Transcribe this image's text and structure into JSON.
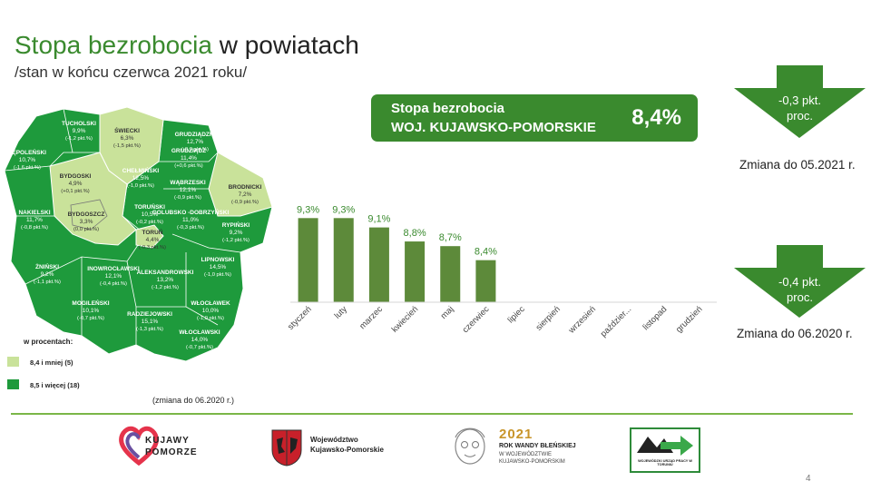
{
  "header": {
    "title_green": "Stopa bezrobocia",
    "title_rest": "w powiatach",
    "subtitle": "/stan w końcu czerwca 2021 roku/"
  },
  "banner": {
    "line1": "Stopa bezrobocia",
    "line2": "WOJ. KUJAWSKO-POMORSKIE",
    "value": "8,4%"
  },
  "changes": [
    {
      "value_line1": "-0,3 pkt.",
      "value_line2": "proc.",
      "caption": "Zmiana do 05.2021 r."
    },
    {
      "value_line1": "-0,4 pkt.",
      "value_line2": "proc.",
      "caption": "Zmiana do 06.2020 r."
    }
  ],
  "map": {
    "legend_title": "w procentach:",
    "legend": [
      {
        "label": "8,4 i mniej (5)",
        "color": "#c9e29a"
      },
      {
        "label": "8,5 i więcej (18)",
        "color": "#1e9a3c"
      }
    ],
    "note": "(zmiana do 06.2020 r.)",
    "counties": [
      {
        "name": "TUCHOLSKI",
        "value": "9,9%",
        "change": "(-1,2 pkt.%)"
      },
      {
        "name": "ŚWIECKI",
        "value": "6,3%",
        "change": "(-1,5 pkt.%)"
      },
      {
        "name": "GRUDZIĄDZKI",
        "value": "12,7%",
        "change": "(-0,3 pkt.%)"
      },
      {
        "name": "GRUDZIĄDZ",
        "value": "11,4%",
        "change": "(+0,6 pkt.%)"
      },
      {
        "name": "SĘPOLEŃSKI",
        "value": "10,7%",
        "change": "(-1,6 pkt.%)"
      },
      {
        "name": "BYDGOSKI",
        "value": "4,9%",
        "change": "(+0,1 pkt.%)"
      },
      {
        "name": "CHEŁMIŃSKI",
        "value": "12,5%",
        "change": "(-1,0 pkt.%)"
      },
      {
        "name": "WĄBRZESKI",
        "value": "12,1%",
        "change": "(-0,9 pkt.%)"
      },
      {
        "name": "BRODNICKI",
        "value": "7,2%",
        "change": "(-0,9 pkt.%)"
      },
      {
        "name": "NAKIELSKI",
        "value": "11,7%",
        "change": "(-0,8 pkt.%)"
      },
      {
        "name": "BYDGOSZCZ",
        "value": "3,3%",
        "change": "(0,0 pkt.%)"
      },
      {
        "name": "TORUŃSKI",
        "value": "10,5%",
        "change": "(-0,2 pkt.%)"
      },
      {
        "name": "GOLUBSKO -DOBRZYŃSKI",
        "value": "11,0%",
        "change": "(-0,3 pkt.%)"
      },
      {
        "name": "RYPIŃSKI",
        "value": "9,2%",
        "change": "(-1,2 pkt.%)"
      },
      {
        "name": "TORUŃ",
        "value": "4,4%",
        "change": "(-0,3 pkt.%)"
      },
      {
        "name": "ŻNIŃSKI",
        "value": "9,2%",
        "change": "(-1,1 pkt.%)"
      },
      {
        "name": "INOWROCŁAWSKI",
        "value": "12,1%",
        "change": "(-0,4 pkt.%)"
      },
      {
        "name": "ALEKSANDROWSKI",
        "value": "13,2%",
        "change": "(-1,2 pkt.%)"
      },
      {
        "name": "LIPNOWSKI",
        "value": "14,5%",
        "change": "(-1,0 pkt.%)"
      },
      {
        "name": "MOGILEŃSKI",
        "value": "10,1%",
        "change": "(-0,7 pkt.%)"
      },
      {
        "name": "RADZIEJOWSKI",
        "value": "15,1%",
        "change": "(-1,3 pkt.%)"
      },
      {
        "name": "WŁOCŁAWEK",
        "value": "10,0%",
        "change": "(-1,0 pkt.%)"
      },
      {
        "name": "WŁOCŁAWSKI",
        "value": "14,0%",
        "change": "(-0,7 pkt.%)"
      }
    ]
  },
  "chart_data": {
    "type": "bar",
    "categories": [
      "styczeń",
      "luty",
      "marzec",
      "kwiecień",
      "maj",
      "czerwiec",
      "lipiec",
      "sierpień",
      "wrzesień",
      "paździer...",
      "listopad",
      "grudzień"
    ],
    "values": [
      9.3,
      9.3,
      9.1,
      8.8,
      8.7,
      8.4,
      null,
      null,
      null,
      null,
      null,
      null
    ],
    "data_labels": [
      "9,3%",
      "9,3%",
      "9,1%",
      "8,8%",
      "8,7%",
      "8,4%",
      "",
      "",
      "",
      "",
      "",
      ""
    ],
    "color": "#5d8a3a",
    "ylim": [
      7.5,
      9.5
    ],
    "title": "",
    "xlabel": "",
    "ylabel": "",
    "grid": false
  },
  "logos": {
    "kujawy_line1": "KUJAWY",
    "kujawy_line2": "POMORZE",
    "woj_line1": "Województwo",
    "woj_line2": "Kujawsko-Pomorskie",
    "year": "2021",
    "year_line1": "ROK WANDY BŁEŃSKIEJ",
    "year_line2": "W WOJEWÓDZTWIE",
    "year_line3": "KUJAWSKO-POMORSKIM",
    "wup_text": "WOJEWÓDZKI URZĄD PRACY W TORUNIU"
  },
  "page_number": "4"
}
